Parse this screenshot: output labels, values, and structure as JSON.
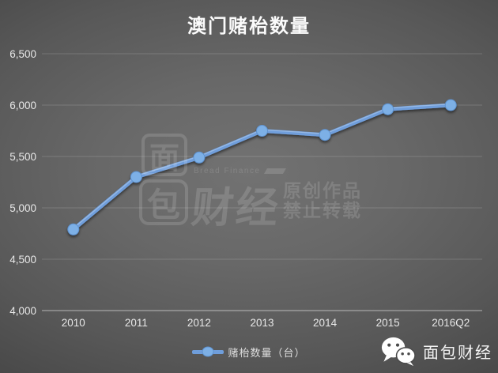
{
  "title": "澳门赌枱数量",
  "legend": {
    "label": "赌枱数量（台）"
  },
  "watermark": {
    "logo_top": "面",
    "logo_bottom": "包",
    "brand_en": "Bread Finance",
    "brand_cn": "财经",
    "notice_line1": "原创作品",
    "notice_line2": "禁止转载"
  },
  "footer": {
    "wechat_account": "面包财经"
  },
  "icons": {
    "wechat": "wechat-icon",
    "legend_marker": "line-marker-icon",
    "watermark_flag": "flag-icon"
  },
  "colors": {
    "background_center": "#6e6e6e",
    "background_edge": "#363636",
    "line": "#6f9edb",
    "marker_fill": "#7db0e6",
    "marker_stroke": "#5e92cf",
    "grid": "rgba(255,255,255,0.16)",
    "axis": "rgba(255,255,255,0.38)",
    "tick_text": "#e8e8e8",
    "title_text": "#fbfbfb"
  },
  "chart_data": {
    "type": "line",
    "title": "澳门赌枱数量",
    "categories": [
      "2010",
      "2011",
      "2012",
      "2013",
      "2014",
      "2015",
      "2016Q2"
    ],
    "series": [
      {
        "name": "赌枱数量（台）",
        "values": [
          4790,
          5300,
          5490,
          5750,
          5710,
          5960,
          6000
        ]
      }
    ],
    "ylim": [
      4000,
      6500
    ],
    "yticks": [
      {
        "value": 6500,
        "label": "6,500"
      },
      {
        "value": 6000,
        "label": "6,000"
      },
      {
        "value": 5500,
        "label": "5,500"
      },
      {
        "value": 5000,
        "label": "5,000"
      },
      {
        "value": 4500,
        "label": "4,500"
      },
      {
        "value": 4000,
        "label": "4,000"
      }
    ],
    "grid": true,
    "legend_position": "bottom",
    "xlabel": "",
    "ylabel": ""
  }
}
